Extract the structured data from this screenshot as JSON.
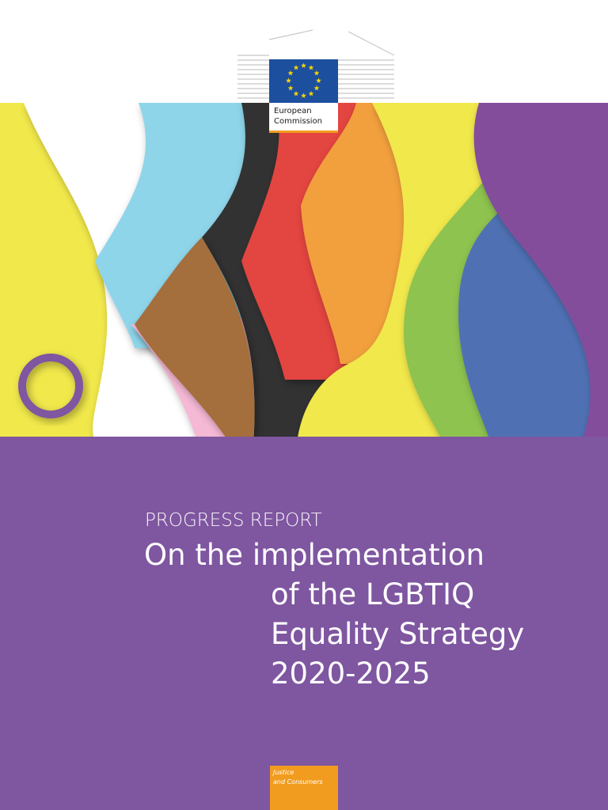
{
  "logo": {
    "lines": [
      "European",
      "Commission"
    ]
  },
  "report_label": "PROGRESS REPORT",
  "title": {
    "lines": [
      "On the implementation",
      "of the LGBTIQ",
      "Equality Strategy",
      "2020-2025"
    ]
  },
  "department": {
    "lines": [
      "Justice",
      "and Consumers"
    ]
  }
}
